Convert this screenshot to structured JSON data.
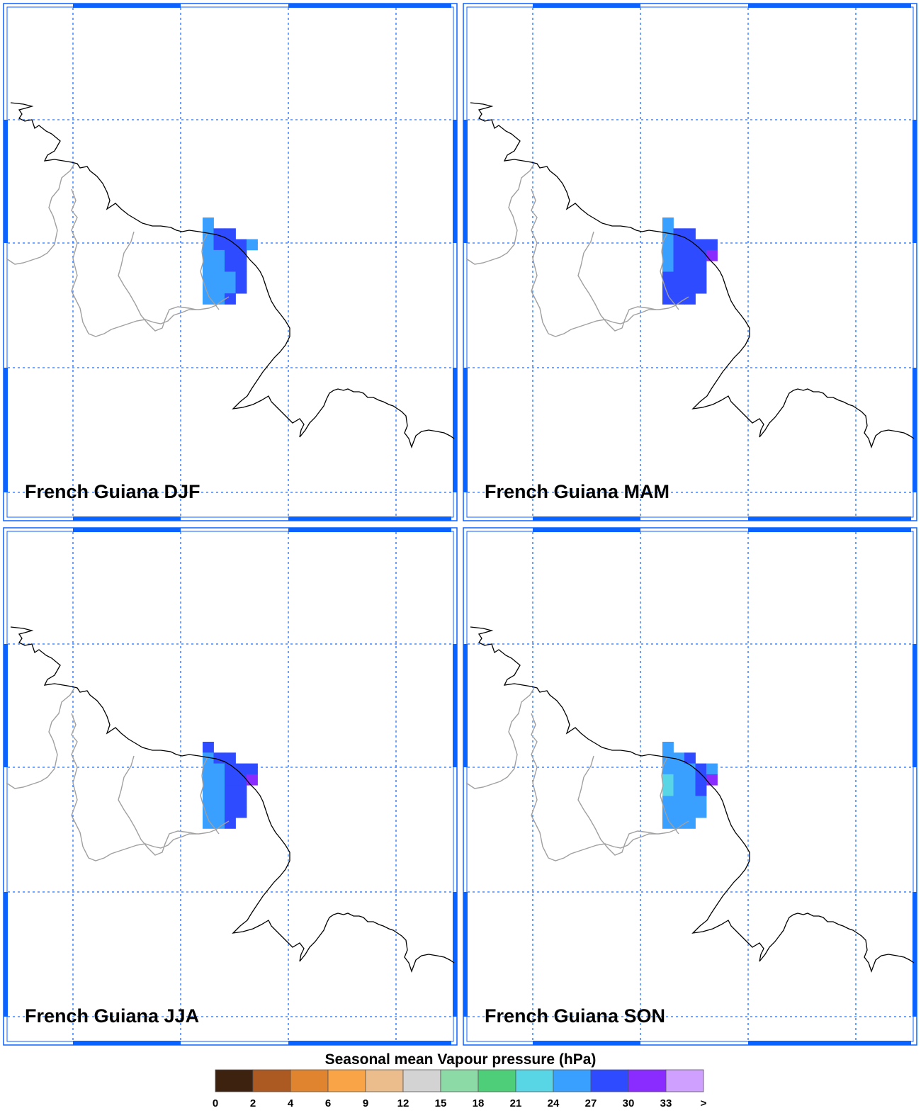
{
  "colors": {
    "frame": "#0a63ff",
    "grid": "#1f6fff",
    "coast": "#000000",
    "border": "#a0a0a0"
  },
  "panels": [
    {
      "title": "French Guiana DJF",
      "cells": [
        [
          0,
          0,
          "24"
        ],
        [
          0,
          1,
          "24"
        ],
        [
          1,
          1,
          "27"
        ],
        [
          2,
          1,
          "27"
        ],
        [
          0,
          2,
          "24"
        ],
        [
          1,
          2,
          "27"
        ],
        [
          2,
          2,
          "27"
        ],
        [
          3,
          2,
          "27"
        ],
        [
          4,
          2,
          "24"
        ],
        [
          0,
          3,
          "24"
        ],
        [
          1,
          3,
          "24"
        ],
        [
          2,
          3,
          "27"
        ],
        [
          3,
          3,
          "27"
        ],
        [
          0,
          4,
          "24"
        ],
        [
          1,
          4,
          "24"
        ],
        [
          2,
          4,
          "27"
        ],
        [
          3,
          4,
          "27"
        ],
        [
          0,
          5,
          "24"
        ],
        [
          1,
          5,
          "24"
        ],
        [
          2,
          5,
          "24"
        ],
        [
          3,
          5,
          "27"
        ],
        [
          0,
          6,
          "24"
        ],
        [
          1,
          6,
          "24"
        ],
        [
          2,
          6,
          "24"
        ],
        [
          3,
          6,
          "27"
        ],
        [
          0,
          7,
          "24"
        ],
        [
          1,
          7,
          "24"
        ],
        [
          2,
          7,
          "27"
        ]
      ]
    },
    {
      "title": "French Guiana MAM",
      "cells": [
        [
          0,
          0,
          "24"
        ],
        [
          0,
          1,
          "24"
        ],
        [
          1,
          1,
          "27"
        ],
        [
          2,
          1,
          "27"
        ],
        [
          0,
          2,
          "24"
        ],
        [
          1,
          2,
          "27"
        ],
        [
          2,
          2,
          "27"
        ],
        [
          3,
          2,
          "27"
        ],
        [
          4,
          2,
          "27"
        ],
        [
          0,
          3,
          "24"
        ],
        [
          1,
          3,
          "27"
        ],
        [
          2,
          3,
          "27"
        ],
        [
          3,
          3,
          "27"
        ],
        [
          4,
          3,
          "30"
        ],
        [
          0,
          4,
          "24"
        ],
        [
          1,
          4,
          "27"
        ],
        [
          2,
          4,
          "27"
        ],
        [
          3,
          4,
          "27"
        ],
        [
          0,
          5,
          "27"
        ],
        [
          1,
          5,
          "27"
        ],
        [
          2,
          5,
          "27"
        ],
        [
          3,
          5,
          "27"
        ],
        [
          0,
          6,
          "27"
        ],
        [
          1,
          6,
          "27"
        ],
        [
          2,
          6,
          "27"
        ],
        [
          3,
          6,
          "27"
        ],
        [
          0,
          7,
          "27"
        ],
        [
          1,
          7,
          "27"
        ],
        [
          2,
          7,
          "27"
        ]
      ]
    },
    {
      "title": "French Guiana JJA",
      "cells": [
        [
          0,
          0,
          "27"
        ],
        [
          0,
          1,
          "24"
        ],
        [
          1,
          1,
          "27"
        ],
        [
          2,
          1,
          "27"
        ],
        [
          0,
          2,
          "24"
        ],
        [
          1,
          2,
          "24"
        ],
        [
          2,
          2,
          "27"
        ],
        [
          3,
          2,
          "27"
        ],
        [
          4,
          2,
          "27"
        ],
        [
          0,
          3,
          "24"
        ],
        [
          1,
          3,
          "24"
        ],
        [
          2,
          3,
          "27"
        ],
        [
          3,
          3,
          "27"
        ],
        [
          4,
          3,
          "30"
        ],
        [
          0,
          4,
          "24"
        ],
        [
          1,
          4,
          "24"
        ],
        [
          2,
          4,
          "27"
        ],
        [
          3,
          4,
          "27"
        ],
        [
          0,
          5,
          "24"
        ],
        [
          1,
          5,
          "24"
        ],
        [
          2,
          5,
          "27"
        ],
        [
          3,
          5,
          "27"
        ],
        [
          0,
          6,
          "24"
        ],
        [
          1,
          6,
          "24"
        ],
        [
          2,
          6,
          "27"
        ],
        [
          3,
          6,
          "27"
        ],
        [
          0,
          7,
          "24"
        ],
        [
          1,
          7,
          "24"
        ],
        [
          2,
          7,
          "27"
        ]
      ]
    },
    {
      "title": "French Guiana SON",
      "cells": [
        [
          0,
          0,
          "24"
        ],
        [
          0,
          1,
          "24"
        ],
        [
          1,
          1,
          "24"
        ],
        [
          2,
          1,
          "27"
        ],
        [
          0,
          2,
          "24"
        ],
        [
          1,
          2,
          "24"
        ],
        [
          2,
          2,
          "24"
        ],
        [
          3,
          2,
          "27"
        ],
        [
          4,
          2,
          "24"
        ],
        [
          0,
          3,
          "21"
        ],
        [
          1,
          3,
          "24"
        ],
        [
          2,
          3,
          "24"
        ],
        [
          3,
          3,
          "27"
        ],
        [
          4,
          3,
          "30"
        ],
        [
          0,
          4,
          "21"
        ],
        [
          1,
          4,
          "24"
        ],
        [
          2,
          4,
          "24"
        ],
        [
          3,
          4,
          "27"
        ],
        [
          0,
          5,
          "24"
        ],
        [
          1,
          5,
          "24"
        ],
        [
          2,
          5,
          "24"
        ],
        [
          3,
          5,
          "24"
        ],
        [
          0,
          6,
          "24"
        ],
        [
          1,
          6,
          "24"
        ],
        [
          2,
          6,
          "24"
        ],
        [
          3,
          6,
          "24"
        ],
        [
          0,
          7,
          "24"
        ],
        [
          1,
          7,
          "24"
        ],
        [
          2,
          7,
          "24"
        ]
      ]
    }
  ],
  "colorbar": {
    "title": "Seasonal mean Vapour pressure (hPa)",
    "labels": [
      "0",
      "2",
      "4",
      "6",
      "9",
      "12",
      "15",
      "18",
      "21",
      "24",
      "27",
      "30",
      "33",
      ">"
    ],
    "bins": [
      {
        "key": "0",
        "color": "#3e2210"
      },
      {
        "key": "2",
        "color": "#ad5a22"
      },
      {
        "key": "4",
        "color": "#e0842f"
      },
      {
        "key": "6",
        "color": "#f9a446"
      },
      {
        "key": "9",
        "color": "#ebbd8c"
      },
      {
        "key": "12",
        "color": "#d3d3d3"
      },
      {
        "key": "15",
        "color": "#8cdba6"
      },
      {
        "key": "18",
        "color": "#4fce7a"
      },
      {
        "key": "21",
        "color": "#58d6e6"
      },
      {
        "key": "24",
        "color": "#3aa0ff"
      },
      {
        "key": "27",
        "color": "#2f4bff"
      },
      {
        "key": "30",
        "color": "#8a2cff"
      },
      {
        "key": "33",
        "color": "#cfa0ff"
      }
    ]
  }
}
